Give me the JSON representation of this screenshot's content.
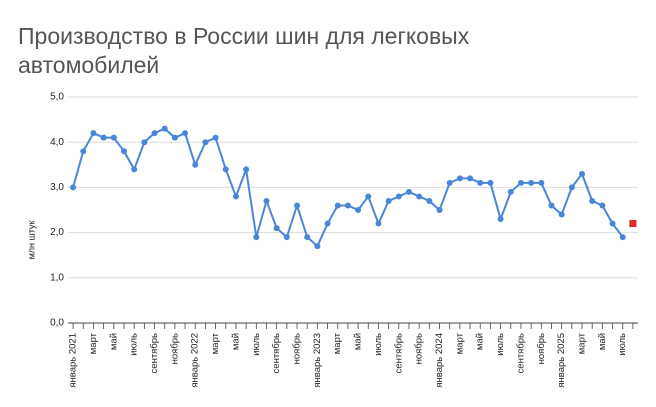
{
  "chart_data": {
    "type": "line",
    "title_lines": [
      "Производство в России шин для легковых",
      "автомобилей"
    ],
    "y_label": "млн штук",
    "categories": [
      "январь 2021",
      null,
      "март",
      null,
      "май",
      null,
      "июль",
      null,
      "сентябрь",
      null,
      "ноябрь",
      null,
      "январь 2022",
      null,
      "март",
      null,
      "май",
      null,
      "июль",
      null,
      "сентябрь",
      null,
      "ноябрь",
      null,
      "январь 2023",
      null,
      "март",
      null,
      "май",
      null,
      "июль",
      null,
      "сентябрь",
      null,
      "ноябрь",
      null,
      "январь 2024",
      null,
      "март",
      null,
      "май",
      null,
      "июль",
      null,
      "сентябрь",
      null,
      "ноябрь",
      null,
      "январь 2025",
      null,
      "март",
      null,
      "май",
      null,
      "июль",
      null
    ],
    "series": [
      {
        "color": "#4a86d8",
        "marker": "circle",
        "values": [
          3.0,
          3.8,
          4.2,
          4.1,
          4.1,
          3.8,
          3.4,
          4.0,
          4.2,
          4.3,
          4.1,
          4.2,
          3.5,
          4.0,
          4.1,
          3.4,
          2.8,
          3.4,
          1.9,
          2.7,
          2.1,
          1.9,
          2.6,
          1.9,
          1.7,
          2.2,
          2.6,
          2.6,
          2.5,
          2.8,
          2.2,
          2.7,
          2.8,
          2.9,
          2.8,
          2.7,
          2.5,
          3.1,
          3.2,
          3.2,
          3.1,
          3.1,
          2.3,
          2.9,
          3.1,
          3.1,
          3.1,
          2.6,
          2.4,
          3.0,
          3.3,
          2.7,
          2.6,
          2.2,
          1.9,
          null
        ]
      },
      {
        "color": "#e3262b",
        "marker": "square",
        "values": [
          null,
          null,
          null,
          null,
          null,
          null,
          null,
          null,
          null,
          null,
          null,
          null,
          null,
          null,
          null,
          null,
          null,
          null,
          null,
          null,
          null,
          null,
          null,
          null,
          null,
          null,
          null,
          null,
          null,
          null,
          null,
          null,
          null,
          null,
          null,
          null,
          null,
          null,
          null,
          null,
          null,
          null,
          null,
          null,
          null,
          null,
          null,
          null,
          null,
          null,
          null,
          null,
          null,
          null,
          null,
          2.2
        ]
      }
    ],
    "ylim": [
      0,
      5
    ],
    "yticks": [
      {
        "value": 0,
        "label": "0,0"
      },
      {
        "value": 1,
        "label": "1,0"
      },
      {
        "value": 2,
        "label": "2,0"
      },
      {
        "value": 3,
        "label": "3,0"
      },
      {
        "value": 4,
        "label": "4,0"
      },
      {
        "value": 5,
        "label": "5,0"
      }
    ],
    "grid": true
  }
}
